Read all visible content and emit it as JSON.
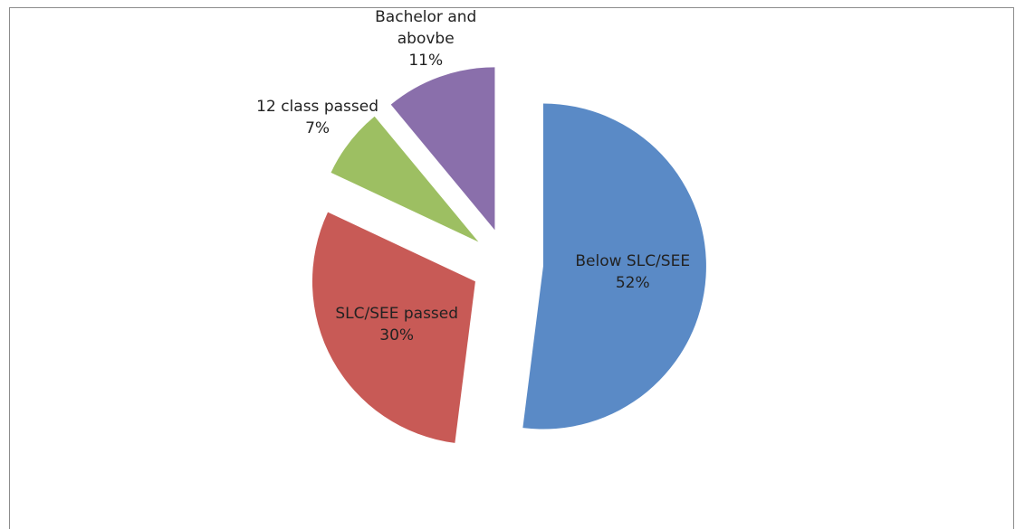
{
  "chart_data": {
    "type": "pie",
    "categories": [
      "Below SLC/SEE",
      "SLC/SEE passed",
      "12 class passed",
      "Bachelor and abovbe"
    ],
    "values": [
      52,
      30,
      7,
      11
    ],
    "value_labels": [
      "52%",
      "30%",
      "7%",
      "11%"
    ],
    "colors": [
      "#5a8ac6",
      "#c85a56",
      "#9dbf62",
      "#8a6fab"
    ]
  }
}
